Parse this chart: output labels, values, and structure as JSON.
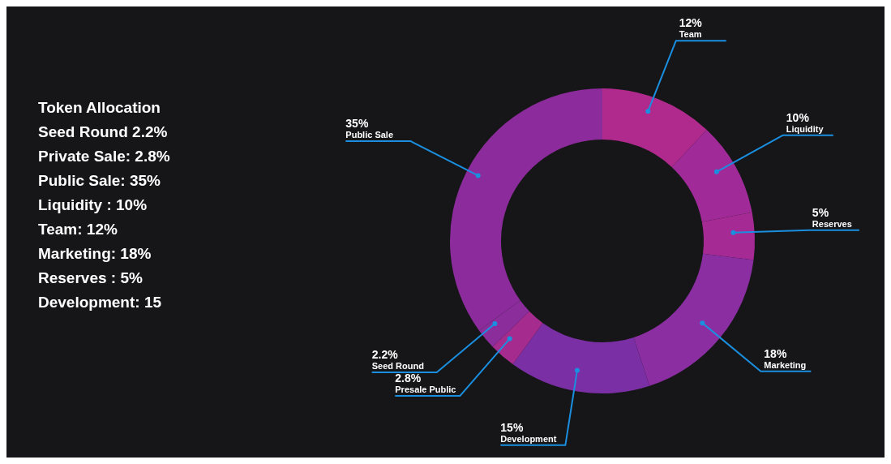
{
  "chart_data": {
    "type": "donut",
    "title": "Token Allocation",
    "annotations": [
      "Seed Round 2.2%",
      "Private Sale: 2.8%",
      "Public Sale: 35%",
      "Liquidity : 10%",
      "Team: 12%",
      "Marketing: 18%",
      "Reserves : 5%",
      "Development: 15"
    ],
    "categories": [
      "Team",
      "Liquidity",
      "Reserves",
      "Marketing",
      "Development",
      "Presale Public",
      "Seed Round",
      "Public Sale"
    ],
    "values": [
      12,
      10,
      5,
      18,
      15,
      2.8,
      2.2,
      35
    ],
    "value_labels": [
      "12%",
      "10%",
      "5%",
      "18%",
      "15%",
      "2.8%",
      "2.2%",
      "35%"
    ],
    "colors": [
      "#b02a8e",
      "#a02b98",
      "#a52a93",
      "#8a2ea2",
      "#7b2fa5",
      "#a62b8f",
      "#8c2d9c",
      "#8c2b9b"
    ]
  }
}
